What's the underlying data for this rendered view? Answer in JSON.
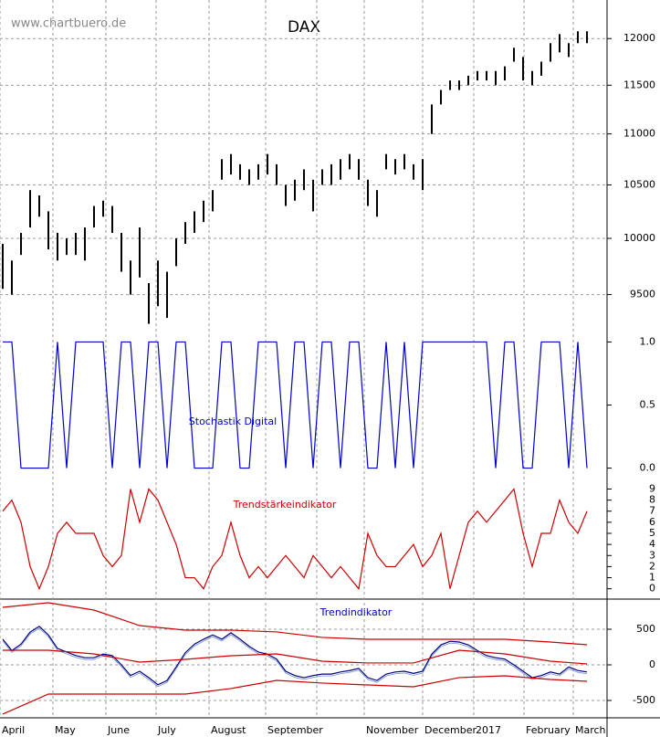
{
  "chart_data": [
    {
      "type": "hilo",
      "title": "DAX",
      "watermark": "www.chartbuero.de",
      "log": true,
      "color": "#000000",
      "ylim": [
        9170,
        12430
      ],
      "yticks": [
        12000,
        11500,
        11000,
        10500,
        10000,
        9500
      ],
      "grid": true,
      "high": [
        9950,
        9800,
        10050,
        10450,
        10400,
        10250,
        10050,
        10000,
        10050,
        10100,
        10300,
        10350,
        10300,
        10050,
        9800,
        10100,
        9600,
        9800,
        9700,
        10000,
        10150,
        10250,
        10350,
        10450,
        10750,
        10800,
        10700,
        10650,
        10700,
        10800,
        10700,
        10500,
        10550,
        10650,
        10550,
        10650,
        10700,
        10750,
        10800,
        10750,
        10550,
        10450,
        10800,
        10750,
        10800,
        10700,
        10750,
        11300,
        11450,
        11550,
        11550,
        11600,
        11650,
        11650,
        11650,
        11700,
        11900,
        11800,
        11650,
        11750,
        11950,
        12050,
        11950,
        12080,
        12080
      ],
      "low": [
        9550,
        9500,
        9850,
        10100,
        10200,
        9900,
        9800,
        9850,
        9850,
        9800,
        10100,
        10200,
        10050,
        9700,
        9500,
        9650,
        9250,
        9400,
        9300,
        9750,
        9950,
        10050,
        10150,
        10250,
        10550,
        10600,
        10550,
        10500,
        10550,
        10600,
        10500,
        10300,
        10350,
        10450,
        10250,
        10500,
        10500,
        10550,
        10650,
        10550,
        10300,
        10200,
        10650,
        10600,
        10650,
        10550,
        10450,
        11000,
        11300,
        11450,
        11450,
        11500,
        11550,
        11550,
        11500,
        11550,
        11750,
        11550,
        11500,
        11600,
        11750,
        11850,
        11800,
        11950,
        11950
      ]
    },
    {
      "type": "line",
      "title": "Stochastik Digital",
      "title_color": "#0000cc",
      "color": "#0000cc",
      "ylim": [
        -0.09,
        1.09
      ],
      "yticks": [
        {
          "value": 1,
          "label": "1.0"
        },
        {
          "value": 0.5,
          "label": "0.5"
        },
        {
          "value": 0,
          "label": "0.0"
        }
      ],
      "values": [
        1,
        1,
        0,
        0,
        0,
        0,
        1,
        0,
        1,
        1,
        1,
        1,
        0,
        1,
        1,
        0,
        1,
        1,
        0,
        1,
        1,
        0,
        0,
        0,
        1,
        1,
        0,
        0,
        1,
        1,
        1,
        0,
        1,
        1,
        0,
        1,
        1,
        0,
        1,
        1,
        0,
        0,
        1,
        0,
        1,
        0,
        1,
        1,
        1,
        1,
        1,
        1,
        1,
        1,
        0,
        1,
        1,
        0,
        0,
        1,
        1,
        1,
        0,
        1,
        0
      ]
    },
    {
      "type": "line",
      "title": "Trendstärkeindikator",
      "title_color": "#cc0000",
      "color": "#cc0000",
      "ylim": [
        -0.85,
        9.45
      ],
      "yticks": [
        0,
        1,
        2,
        3,
        4,
        5,
        6,
        7,
        8,
        9
      ],
      "values": [
        7,
        8,
        6,
        2,
        0,
        2,
        5,
        6,
        5,
        5,
        5,
        3,
        2,
        3,
        9,
        6,
        9,
        8,
        6,
        4,
        1,
        1,
        0,
        2,
        3,
        6,
        3,
        1,
        2,
        1,
        2,
        3,
        2,
        1,
        3,
        2,
        1,
        2,
        1,
        0,
        5,
        3,
        2,
        2,
        3,
        4,
        2,
        3,
        5,
        0,
        3,
        6,
        7,
        6,
        7,
        8,
        9,
        5,
        2,
        5,
        5,
        8,
        6,
        5,
        7
      ]
    },
    {
      "type": "multi-line",
      "title": "Trendindikator",
      "title_color": "#0000cc",
      "ylim": [
        -731,
        923
      ],
      "yticks": [
        500,
        0,
        -500
      ],
      "grid": true,
      "series": [
        {
          "color": "#000080",
          "values": [
            360,
            200,
            290,
            460,
            540,
            420,
            230,
            180,
            130,
            100,
            100,
            150,
            130,
            0,
            -150,
            -90,
            -180,
            -280,
            -220,
            -30,
            170,
            290,
            360,
            420,
            360,
            450,
            360,
            260,
            180,
            150,
            80,
            -90,
            -150,
            -180,
            -150,
            -130,
            -130,
            -100,
            -80,
            -50,
            -180,
            -220,
            -130,
            -100,
            -90,
            -120,
            -90,
            150,
            280,
            330,
            320,
            280,
            200,
            130,
            100,
            80,
            0,
            -90,
            -180,
            -150,
            -100,
            -130,
            -30,
            -80,
            -100
          ]
        },
        {
          "color": "#cc0000",
          "x": [
            0,
            5,
            10,
            15,
            20,
            25,
            30,
            35,
            40,
            45,
            50,
            55,
            60,
            64
          ],
          "values": [
            808,
            872,
            769,
            551,
            487,
            487,
            462,
            385,
            359,
            359,
            359,
            359,
            320,
            282
          ]
        },
        {
          "color": "#cc0000",
          "x": [
            0,
            5,
            10,
            15,
            20,
            25,
            30,
            35,
            40,
            45,
            50,
            55,
            60,
            64
          ],
          "values": [
            205,
            205,
            154,
            38,
            77,
            128,
            154,
            51,
            26,
            26,
            205,
            154,
            51,
            13
          ]
        },
        {
          "color": "#cc0000",
          "x": [
            0,
            5,
            10,
            15,
            20,
            25,
            30,
            35,
            40,
            45,
            50,
            55,
            60,
            64
          ],
          "values": [
            -692,
            -410,
            -410,
            -410,
            -410,
            -333,
            -218,
            -256,
            -282,
            -308,
            -179,
            -154,
            -205,
            -231
          ]
        }
      ],
      "xlim": [
        -0.3,
        66.2
      ],
      "xticks": [
        {
          "value": -0.3,
          "label": "April"
        },
        {
          "value": 5.5,
          "label": "May"
        },
        {
          "value": 11.3,
          "label": "June"
        },
        {
          "value": 16.8,
          "label": "July"
        },
        {
          "value": 22.6,
          "label": "August"
        },
        {
          "value": 28.8,
          "label": "September"
        },
        {
          "value": 34.4,
          "label": null
        },
        {
          "value": 39.6,
          "label": "November"
        },
        {
          "value": 46,
          "label": "December"
        },
        {
          "value": 51.6,
          "label": "2017"
        },
        {
          "value": 57.1,
          "label": "February"
        },
        {
          "value": 62.5,
          "label": "March"
        }
      ]
    }
  ]
}
